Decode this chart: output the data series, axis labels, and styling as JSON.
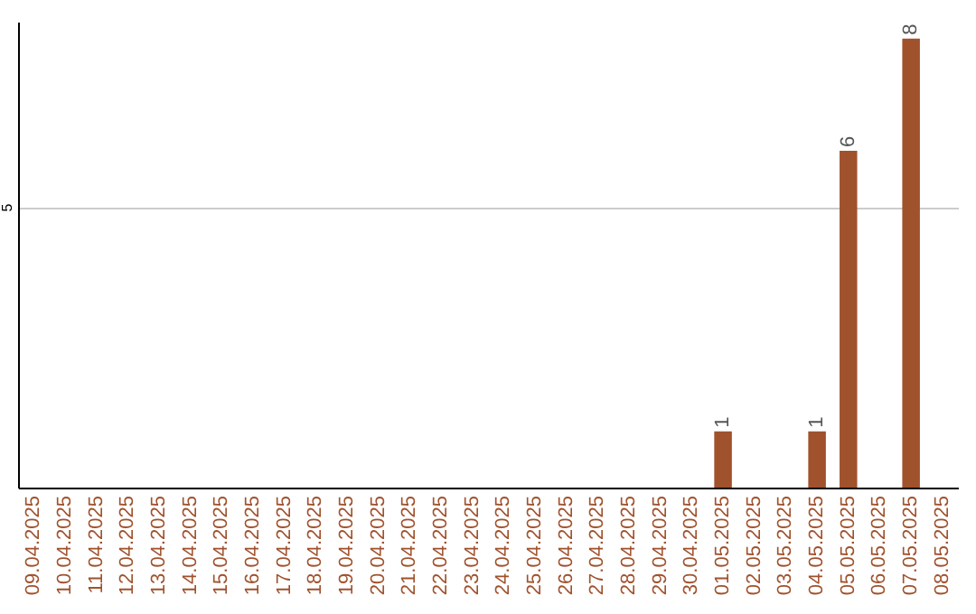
{
  "chart_data": {
    "type": "bar",
    "categories": [
      "09.04.2025",
      "10.04.2025",
      "11.04.2025",
      "12.04.2025",
      "13.04.2025",
      "14.04.2025",
      "15.04.2025",
      "16.04.2025",
      "17.04.2025",
      "18.04.2025",
      "19.04.2025",
      "20.04.2025",
      "21.04.2025",
      "22.04.2025",
      "23.04.2025",
      "24.04.2025",
      "25.04.2025",
      "26.04.2025",
      "27.04.2025",
      "28.04.2025",
      "29.04.2025",
      "30.04.2025",
      "01.05.2025",
      "02.05.2025",
      "03.05.2025",
      "04.05.2025",
      "05.05.2025",
      "06.05.2025",
      "07.05.2025",
      "08.05.2025"
    ],
    "values": [
      null,
      null,
      null,
      null,
      null,
      null,
      null,
      null,
      null,
      null,
      null,
      null,
      null,
      null,
      null,
      null,
      null,
      null,
      null,
      null,
      null,
      null,
      1,
      null,
      null,
      1,
      6,
      null,
      8,
      null
    ],
    "color": "#a0522d",
    "ylim": [
      0,
      8.3
    ],
    "yticks": [
      5
    ],
    "grid": "y",
    "data_labels": true
  }
}
